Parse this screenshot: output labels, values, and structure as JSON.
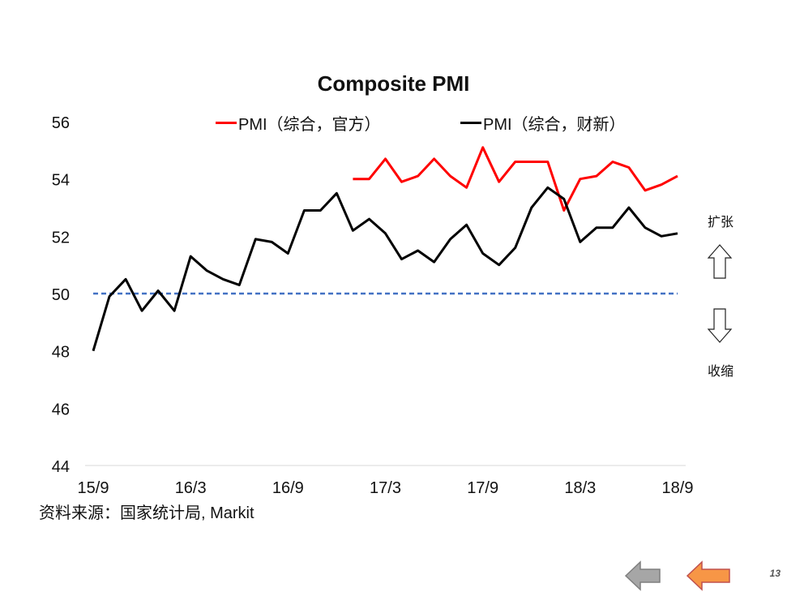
{
  "chart_data": {
    "type": "line",
    "title": "Composite PMI",
    "xlabel": "",
    "ylabel": "",
    "ylim": [
      44,
      56
    ],
    "yticks": [
      44,
      46,
      48,
      50,
      52,
      54,
      56
    ],
    "x_tick_labels": [
      "15/9",
      "16/3",
      "16/9",
      "17/3",
      "17/9",
      "18/3",
      "18/9"
    ],
    "categories": [
      "15/9",
      "15/10",
      "15/11",
      "15/12",
      "16/1",
      "16/2",
      "16/3",
      "16/4",
      "16/5",
      "16/6",
      "16/7",
      "16/8",
      "16/9",
      "16/10",
      "16/11",
      "16/12",
      "17/1",
      "17/2",
      "17/3",
      "17/4",
      "17/5",
      "17/6",
      "17/7",
      "17/8",
      "17/9",
      "17/10",
      "17/11",
      "17/12",
      "18/1",
      "18/2",
      "18/3",
      "18/4",
      "18/5",
      "18/6",
      "18/7",
      "18/8",
      "18/9"
    ],
    "reference_line": {
      "value": 50,
      "style": "dashed",
      "color": "#4472C4"
    },
    "legend_position": "top",
    "series": [
      {
        "name": "PMI（综合，官方）",
        "color": "#FF0000",
        "values": [
          null,
          null,
          null,
          null,
          null,
          null,
          null,
          null,
          null,
          null,
          null,
          null,
          null,
          null,
          null,
          null,
          54.0,
          54.0,
          54.7,
          53.9,
          54.1,
          54.7,
          54.1,
          53.7,
          55.1,
          53.9,
          54.6,
          54.6,
          54.6,
          52.9,
          54.0,
          54.1,
          54.6,
          54.4,
          53.6,
          53.8,
          54.1
        ]
      },
      {
        "name": "PMI（综合，财新）",
        "color": "#000000",
        "values": [
          48.0,
          49.9,
          50.5,
          49.4,
          50.1,
          49.4,
          51.3,
          50.8,
          50.5,
          50.3,
          51.9,
          51.8,
          51.4,
          52.9,
          52.9,
          53.5,
          52.2,
          52.6,
          52.1,
          51.2,
          51.5,
          51.1,
          51.9,
          52.4,
          51.4,
          51.0,
          51.6,
          53.0,
          53.7,
          53.3,
          51.8,
          52.3,
          52.3,
          53.0,
          52.3,
          52.0,
          52.1
        ]
      }
    ]
  },
  "side_labels": {
    "expand": "扩张",
    "contract": "收缩"
  },
  "source_note": "资料来源：国家统计局, Markit",
  "page_number": "13",
  "nav": {
    "back_color": "#A6A6A6",
    "forward_color": "#F79646"
  }
}
